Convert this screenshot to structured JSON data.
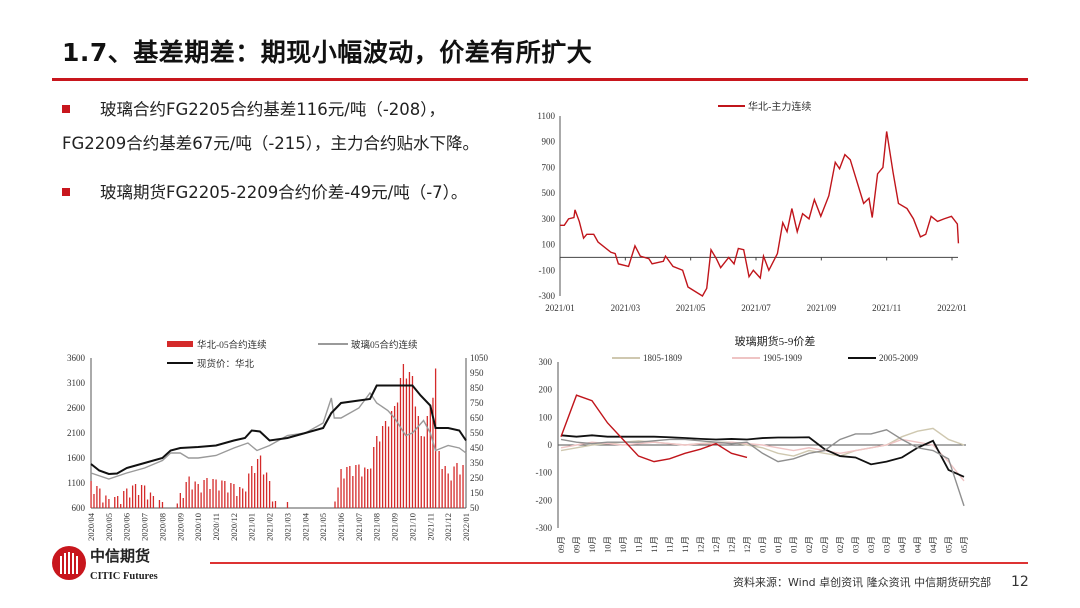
{
  "title": "1.7、基差期差：期现小幅波动，价差有所扩大",
  "bullets": [
    {
      "line1": "玻璃合约FG2205合约基差116元/吨（-208），",
      "line2": "FG2209合约基差67元/吨（-215），主力合约贴水下降。"
    },
    {
      "line1": "玻璃期货FG2205-2209合约价差-49元/吨（-7）。"
    }
  ],
  "footer": {
    "logo_cn": "中信期货",
    "logo_en": "CITIC Futures",
    "source": "资料来源：Wind 卓创资讯 隆众资讯 中信期货研究部",
    "page": "12"
  },
  "colors": {
    "accent": "#c8161d",
    "spot": "#111111",
    "contract05": "#9a9a9a",
    "basis": "#c0151b"
  },
  "chart_data": [
    {
      "type": "line",
      "title": "",
      "ylim": [
        -300,
        1100
      ],
      "yticks": [
        "1100",
        "900",
        "700",
        "500",
        "300",
        "100",
        "-100",
        "-300"
      ],
      "xticks": [
        "2021/01",
        "2021/03",
        "2021/05",
        "2021/07",
        "2021/09",
        "2021/11",
        "2022/01"
      ],
      "grid": false,
      "legend": "top-center",
      "series": [
        {
          "name": "华北-主力连续",
          "color": "#c0151b",
          "points": [
            [
              "2021-01-01",
              250
            ],
            [
              "2021-01-05",
              250
            ],
            [
              "2021-01-09",
              300
            ],
            [
              "2021-01-14",
              310
            ],
            [
              "2021-01-15",
              370
            ],
            [
              "2021-01-19",
              280
            ],
            [
              "2021-01-23",
              150
            ],
            [
              "2021-01-26",
              180
            ],
            [
              "2021-02-02",
              180
            ],
            [
              "2021-02-06",
              120
            ],
            [
              "2021-02-18",
              40
            ],
            [
              "2021-02-22",
              30
            ],
            [
              "2021-02-25",
              -50
            ],
            [
              "2021-03-04",
              -70
            ],
            [
              "2021-03-10",
              90
            ],
            [
              "2021-03-15",
              10
            ],
            [
              "2021-03-23",
              -10
            ],
            [
              "2021-03-26",
              -50
            ],
            [
              "2021-04-06",
              -30
            ],
            [
              "2021-04-08",
              10
            ],
            [
              "2021-04-15",
              -70
            ],
            [
              "2021-04-24",
              -100
            ],
            [
              "2021-04-29",
              -230
            ],
            [
              "2021-05-12",
              -300
            ],
            [
              "2021-05-16",
              -240
            ],
            [
              "2021-05-20",
              60
            ],
            [
              "2021-05-25",
              -10
            ],
            [
              "2021-05-29",
              -80
            ],
            [
              "2021-06-06",
              0
            ],
            [
              "2021-06-11",
              -50
            ],
            [
              "2021-06-15",
              70
            ],
            [
              "2021-06-20",
              60
            ],
            [
              "2021-06-25",
              -150
            ],
            [
              "2021-06-29",
              -100
            ],
            [
              "2021-07-05",
              -160
            ],
            [
              "2021-07-08",
              10
            ],
            [
              "2021-07-13",
              -100
            ],
            [
              "2021-07-21",
              30
            ],
            [
              "2021-07-26",
              270
            ],
            [
              "2021-07-30",
              200
            ],
            [
              "2021-08-04",
              380
            ],
            [
              "2021-08-09",
              200
            ],
            [
              "2021-08-14",
              340
            ],
            [
              "2021-08-20",
              300
            ],
            [
              "2021-08-25",
              450
            ],
            [
              "2021-08-31",
              320
            ],
            [
              "2021-09-08",
              480
            ],
            [
              "2021-09-14",
              740
            ],
            [
              "2021-09-18",
              690
            ],
            [
              "2021-09-23",
              800
            ],
            [
              "2021-09-28",
              760
            ],
            [
              "2021-10-10",
              420
            ],
            [
              "2021-10-15",
              460
            ],
            [
              "2021-10-18",
              310
            ],
            [
              "2021-10-23",
              650
            ],
            [
              "2021-10-28",
              700
            ],
            [
              "2021-11-01",
              980
            ],
            [
              "2021-11-07",
              660
            ],
            [
              "2021-11-12",
              420
            ],
            [
              "2021-11-20",
              380
            ],
            [
              "2021-11-26",
              300
            ],
            [
              "2021-12-02",
              160
            ],
            [
              "2021-12-07",
              180
            ],
            [
              "2021-12-12",
              320
            ],
            [
              "2021-12-18",
              280
            ],
            [
              "2021-12-24",
              300
            ],
            [
              "2021-12-31",
              320
            ],
            [
              "2022-01-06",
              260
            ],
            [
              "2022-01-07",
              110
            ]
          ]
        }
      ]
    },
    {
      "type": "bar+line",
      "title": "",
      "ylim_left": [
        600,
        3600
      ],
      "ylim_right": [
        50,
        1050
      ],
      "yticks_left": [
        "3600",
        "3100",
        "2600",
        "2100",
        "1600",
        "1100",
        "600"
      ],
      "yticks_right": [
        "1050",
        "950",
        "850",
        "750",
        "650",
        "550",
        "450",
        "350",
        "250",
        "150",
        "50"
      ],
      "xticks": [
        "2020/04",
        "2020/05",
        "2020/06",
        "2020/07",
        "2020/08",
        "2020/09",
        "2020/10",
        "2020/11",
        "2020/12",
        "2021/01",
        "2021/02",
        "2021/03",
        "2021/04",
        "2021/05",
        "2021/06",
        "2021/07",
        "2021/08",
        "2021/09",
        "2021/10",
        "2021/11",
        "2021/12",
        "2022/01"
      ],
      "grid": false,
      "legend": "top",
      "bars": {
        "name": "华北-05合约连续",
        "axis": "right",
        "color": "#d42a2a",
        "points": [
          [
            "2020-04-01",
            200
          ],
          [
            "2020-04-16",
            150
          ],
          [
            "2020-05-01",
            80
          ],
          [
            "2020-05-16",
            100
          ],
          [
            "2020-06-01",
            150
          ],
          [
            "2020-06-16",
            180
          ],
          [
            "2020-07-01",
            170
          ],
          [
            "2020-07-16",
            100
          ],
          [
            "2020-08-01",
            60
          ],
          [
            "2020-08-16",
            0
          ],
          [
            "2020-09-01",
            120
          ],
          [
            "2020-09-16",
            230
          ],
          [
            "2020-10-01",
            180
          ],
          [
            "2020-10-16",
            220
          ],
          [
            "2020-11-01",
            210
          ],
          [
            "2020-11-16",
            200
          ],
          [
            "2020-12-01",
            180
          ],
          [
            "2020-12-16",
            150
          ],
          [
            "2021-01-01",
            300
          ],
          [
            "2021-01-16",
            370
          ],
          [
            "2021-02-01",
            200
          ],
          [
            "2021-02-16",
            0
          ],
          [
            "2021-03-01",
            60
          ],
          [
            "2021-03-16",
            0
          ],
          [
            "2021-04-01",
            0
          ],
          [
            "2021-04-16",
            0
          ],
          [
            "2021-05-01",
            0
          ],
          [
            "2021-05-16",
            0
          ],
          [
            "2021-06-01",
            280
          ],
          [
            "2021-06-16",
            300
          ],
          [
            "2021-07-01",
            310
          ],
          [
            "2021-07-16",
            280
          ],
          [
            "2021-08-01",
            500
          ],
          [
            "2021-08-16",
            600
          ],
          [
            "2021-09-01",
            700
          ],
          [
            "2021-09-16",
            980
          ],
          [
            "2021-10-01",
            900
          ],
          [
            "2021-10-16",
            500
          ],
          [
            "2021-11-01",
            700
          ],
          [
            "2021-11-10",
            950
          ],
          [
            "2021-11-16",
            400
          ],
          [
            "2021-12-01",
            250
          ],
          [
            "2021-12-16",
            320
          ],
          [
            "2022-01-01",
            300
          ]
        ]
      },
      "series": [
        {
          "name": "玻璃05合约连续",
          "axis": "left",
          "color": "#9a9a9a",
          "points": [
            [
              "2020-04-01",
              1300
            ],
            [
              "2020-05-01",
              1180
            ],
            [
              "2020-06-01",
              1300
            ],
            [
              "2020-07-01",
              1400
            ],
            [
              "2020-08-01",
              1550
            ],
            [
              "2020-08-15",
              1700
            ],
            [
              "2020-09-01",
              1700
            ],
            [
              "2020-09-15",
              1600
            ],
            [
              "2020-10-01",
              1600
            ],
            [
              "2020-11-01",
              1650
            ],
            [
              "2020-12-01",
              1800
            ],
            [
              "2020-12-25",
              1900
            ],
            [
              "2021-01-10",
              1750
            ],
            [
              "2021-02-01",
              1850
            ],
            [
              "2021-03-01",
              2050
            ],
            [
              "2021-04-01",
              2100
            ],
            [
              "2021-05-01",
              2300
            ],
            [
              "2021-05-15",
              2800
            ],
            [
              "2021-05-20",
              2400
            ],
            [
              "2021-06-01",
              2400
            ],
            [
              "2021-07-01",
              2600
            ],
            [
              "2021-07-20",
              2900
            ],
            [
              "2021-08-01",
              2700
            ],
            [
              "2021-08-20",
              2550
            ],
            [
              "2021-09-01",
              2400
            ],
            [
              "2021-09-20",
              2050
            ],
            [
              "2021-10-01",
              2100
            ],
            [
              "2021-10-20",
              2350
            ],
            [
              "2021-11-01",
              2100
            ],
            [
              "2021-11-10",
              1750
            ],
            [
              "2021-12-01",
              1850
            ],
            [
              "2021-12-20",
              1800
            ],
            [
              "2022-01-01",
              1700
            ]
          ]
        },
        {
          "name": "现货价：华北",
          "axis": "left",
          "color": "#111111",
          "points": [
            [
              "2020-04-01",
              1480
            ],
            [
              "2020-04-15",
              1350
            ],
            [
              "2020-05-01",
              1280
            ],
            [
              "2020-05-15",
              1290
            ],
            [
              "2020-06-01",
              1400
            ],
            [
              "2020-07-01",
              1500
            ],
            [
              "2020-08-01",
              1600
            ],
            [
              "2020-08-15",
              1750
            ],
            [
              "2020-09-01",
              1800
            ],
            [
              "2020-10-01",
              1820
            ],
            [
              "2020-11-01",
              1850
            ],
            [
              "2020-12-01",
              1950
            ],
            [
              "2020-12-20",
              2000
            ],
            [
              "2021-01-01",
              2150
            ],
            [
              "2021-01-15",
              2130
            ],
            [
              "2021-02-01",
              1950
            ],
            [
              "2021-03-01",
              2000
            ],
            [
              "2021-04-01",
              2100
            ],
            [
              "2021-05-01",
              2200
            ],
            [
              "2021-05-15",
              2500
            ],
            [
              "2021-06-01",
              2700
            ],
            [
              "2021-07-01",
              2750
            ],
            [
              "2021-07-20",
              2780
            ],
            [
              "2021-08-01",
              3050
            ],
            [
              "2021-09-01",
              3050
            ],
            [
              "2021-10-01",
              3050
            ],
            [
              "2021-10-15",
              2850
            ],
            [
              "2021-11-01",
              2650
            ],
            [
              "2021-11-10",
              2200
            ],
            [
              "2021-12-01",
              2200
            ],
            [
              "2021-12-20",
              2150
            ],
            [
              "2022-01-01",
              1950
            ]
          ]
        }
      ]
    },
    {
      "type": "line",
      "title": "玻璃期货5-9价差",
      "ylim": [
        -300,
        300
      ],
      "yticks": [
        "300",
        "200",
        "100",
        "0",
        "-100",
        "-200",
        "-300"
      ],
      "xticks": [
        "09月",
        "09月",
        "10月",
        "10月",
        "10月",
        "11月",
        "11月",
        "11月",
        "11月",
        "12月",
        "12月",
        "12月",
        "12月",
        "01月",
        "01月",
        "01月",
        "02月",
        "02月",
        "02月",
        "03月",
        "03月",
        "03月",
        "04月",
        "04月",
        "04月",
        "05月",
        "05月"
      ],
      "grid": false,
      "legend": "top",
      "series": [
        {
          "name": "1805-1809",
          "color": "#cfc8b0",
          "values": [
            -20,
            -10,
            0,
            5,
            10,
            15,
            10,
            5,
            0,
            5,
            10,
            10,
            0,
            -10,
            -30,
            -40,
            -20,
            -30,
            -40,
            -20,
            -10,
            0,
            30,
            50,
            60,
            20,
            0
          ]
        },
        {
          "name": "1905-1909",
          "color": "#efc4c4",
          "values": [
            -10,
            0,
            10,
            5,
            0,
            5,
            10,
            5,
            0,
            5,
            5,
            10,
            5,
            0,
            -10,
            -20,
            -10,
            -20,
            -30,
            -20,
            -10,
            0,
            20,
            10,
            0,
            -60,
            -130
          ]
        },
        {
          "name": "2005-2009",
          "color": "#111111",
          "values": [
            35,
            30,
            35,
            30,
            30,
            30,
            30,
            28,
            25,
            22,
            20,
            22,
            20,
            25,
            27,
            27,
            28,
            -15,
            -40,
            -45,
            -70,
            -60,
            -45,
            -10,
            15,
            -90,
            -115
          ]
        },
        {
          "color": "#8f8f8f",
          "values": [
            20,
            10,
            5,
            10,
            10,
            10,
            15,
            20,
            20,
            15,
            10,
            5,
            10,
            -30,
            -60,
            -50,
            -30,
            -20,
            20,
            40,
            40,
            55,
            20,
            -10,
            -20,
            -50,
            -220
          ]
        },
        {
          "color": "#c0151b",
          "values": [
            30,
            180,
            160,
            80,
            20,
            -40,
            -60,
            -50,
            -30,
            -15,
            5,
            -30,
            -45
          ]
        }
      ]
    }
  ]
}
